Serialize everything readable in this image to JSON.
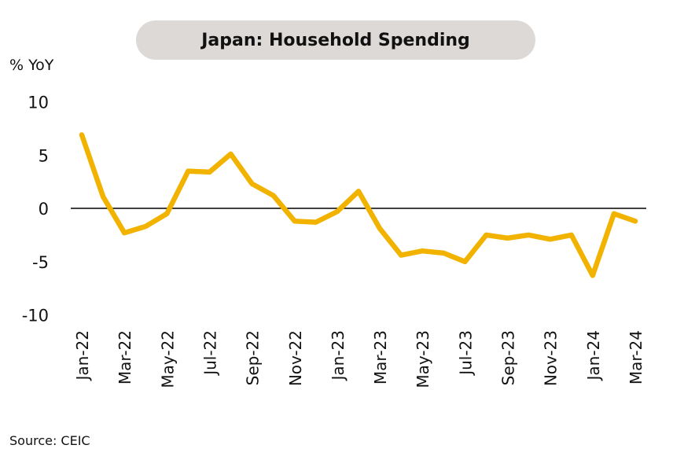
{
  "title": "Japan: Household Spending",
  "source": "Source: CEIC",
  "chart_data": {
    "type": "line",
    "title": "Japan: Household Spending",
    "ylabel": "% YoY",
    "xlabel": "",
    "ylim": [
      -10,
      10
    ],
    "yticks": [
      10,
      5,
      0,
      -5,
      -10
    ],
    "x": [
      "Jan-22",
      "Feb-22",
      "Mar-22",
      "Apr-22",
      "May-22",
      "Jun-22",
      "Jul-22",
      "Aug-22",
      "Sep-22",
      "Oct-22",
      "Nov-22",
      "Dec-22",
      "Jan-23",
      "Feb-23",
      "Mar-23",
      "Apr-23",
      "May-23",
      "Jun-23",
      "Jul-23",
      "Aug-23",
      "Sep-23",
      "Oct-23",
      "Nov-23",
      "Dec-23",
      "Jan-24",
      "Feb-24",
      "Mar-24"
    ],
    "xtick_labels": [
      "Jan-22",
      "Mar-22",
      "May-22",
      "Jul-22",
      "Sep-22",
      "Nov-22",
      "Jan-23",
      "Mar-23",
      "May-23",
      "Jul-23",
      "Sep-23",
      "Nov-23",
      "Jan-24",
      "Mar-24"
    ],
    "series": [
      {
        "values": [
          6.9,
          1.1,
          -2.3,
          -1.7,
          -0.5,
          3.5,
          3.4,
          5.1,
          2.3,
          1.2,
          -1.2,
          -1.3,
          -0.3,
          1.6,
          -1.9,
          -4.4,
          -4.0,
          -4.2,
          -5.0,
          -2.5,
          -2.8,
          -2.5,
          -2.9,
          -2.5,
          -6.3,
          -0.5,
          -1.2
        ],
        "color": "#f2b300"
      }
    ],
    "zero_line_color": "#000000",
    "grid": false
  }
}
